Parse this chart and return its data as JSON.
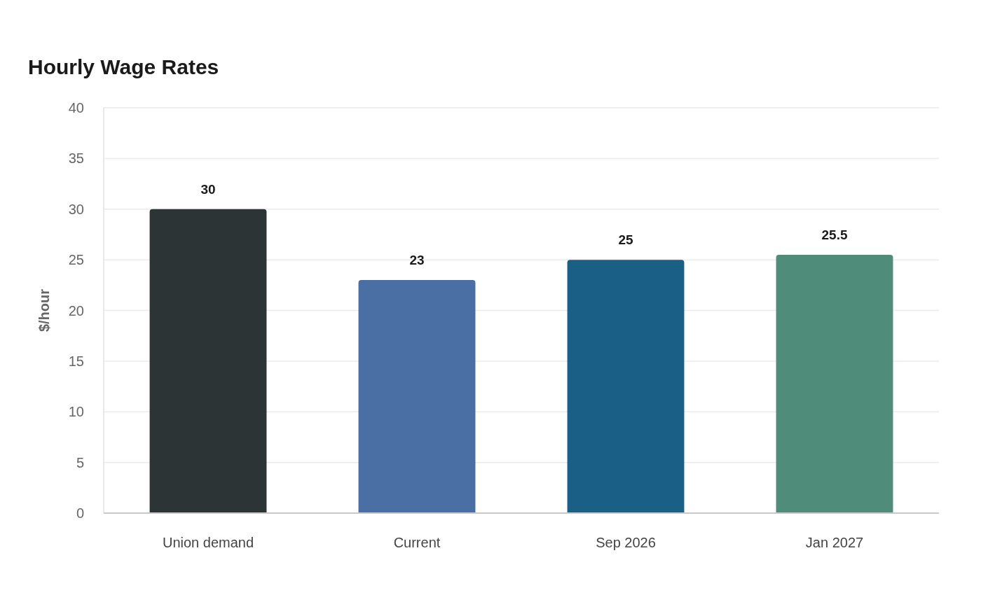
{
  "chart_data": {
    "type": "bar",
    "title": "Hourly Wage Rates",
    "ylabel": "$/hour",
    "categories": [
      "Union demand",
      "Current",
      "Sep 2026",
      "Jan 2027"
    ],
    "values": [
      30,
      23,
      25,
      25.5
    ],
    "colors": [
      "#2d3436",
      "#4a6fa5",
      "#1a5f85",
      "#4f8c7a"
    ],
    "ylim": [
      0,
      40
    ],
    "yticks": [
      0,
      5,
      10,
      15,
      20,
      25,
      30,
      35,
      40
    ],
    "grid": "y",
    "data_labels": true
  }
}
